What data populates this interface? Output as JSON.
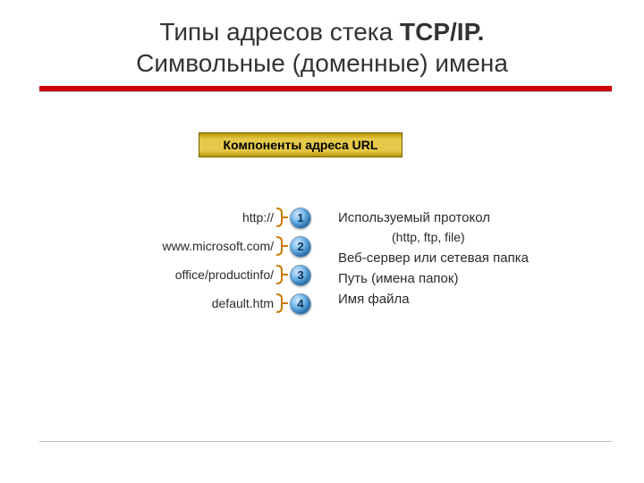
{
  "title_part1": "Типы адресов стека ",
  "title_bold": "TCP/IP.",
  "title_line2": "Символьные (доменные) имена",
  "badge": "Компоненты адреса URL",
  "bracket_color": "#c97a00",
  "segments": [
    {
      "text": "http://",
      "num": "1"
    },
    {
      "text": "www.microsoft.com/",
      "num": "2"
    },
    {
      "text": "office/productinfo/",
      "num": "3"
    },
    {
      "text": "default.htm",
      "num": "4"
    }
  ],
  "desc": [
    {
      "text": "Используемый протокол",
      "indent": false
    },
    {
      "text": "(http, ftp, file)",
      "indent": true
    },
    {
      "text": "Веб-сервер или сетевая папка",
      "indent": false
    },
    {
      "text": "Путь (имена папок)",
      "indent": false
    },
    {
      "text": "Имя файла",
      "indent": false
    }
  ]
}
